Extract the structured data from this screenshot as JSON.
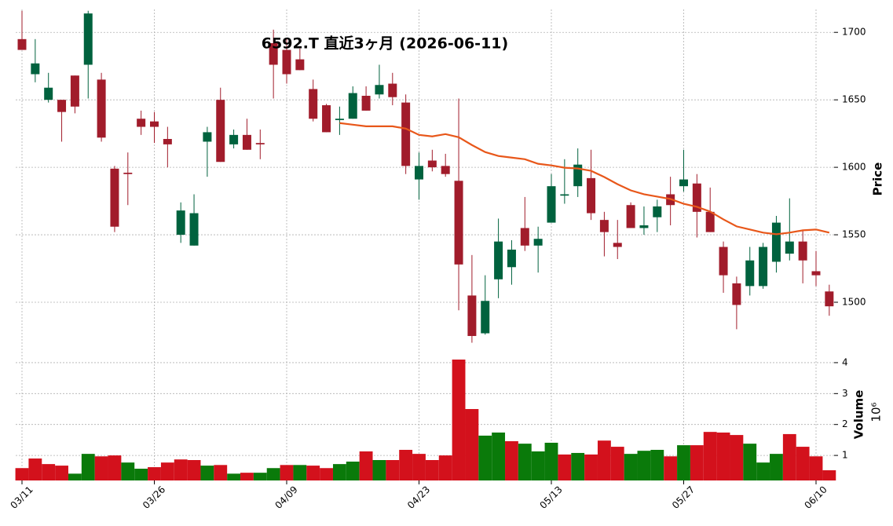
{
  "chart_data": {
    "type": "candlestick",
    "title": "6592.T  直近3ヶ月  (2026-06-11)",
    "categories": [
      "03/11",
      null,
      null,
      null,
      null,
      null,
      null,
      null,
      null,
      null,
      "03/26",
      null,
      null,
      null,
      null,
      null,
      null,
      null,
      null,
      null,
      "04/09",
      null,
      null,
      null,
      null,
      null,
      null,
      null,
      null,
      null,
      "04/23",
      null,
      null,
      null,
      null,
      null,
      null,
      null,
      null,
      null,
      "05/13",
      null,
      null,
      null,
      null,
      null,
      null,
      null,
      null,
      null,
      "05/27",
      null,
      null,
      null,
      null,
      null,
      null,
      null,
      null,
      null,
      "06/10",
      null
    ],
    "open": [
      1695,
      1669,
      1650,
      1650,
      1668,
      1676,
      1665,
      1599,
      1596,
      1636,
      1634,
      1621,
      1550,
      1542,
      1619,
      1650,
      1617,
      1624,
      1618,
      1692,
      1687,
      1680,
      1658,
      1646,
      1635,
      1636,
      1653,
      1654,
      1662,
      1648,
      1591,
      1605,
      1601,
      1590,
      1505,
      1477,
      1517,
      1526,
      1555,
      1542,
      1559,
      1579,
      1586,
      1592,
      1561,
      1544,
      1572,
      1555,
      1563,
      1580,
      1586,
      1588,
      1567,
      1541,
      1514,
      1512,
      1512,
      1530,
      1536,
      1545,
      1523,
      1508
    ],
    "high": [
      1716,
      1695,
      1670,
      1650,
      1668,
      1716,
      1670,
      1601,
      1611,
      1642,
      1641,
      1630,
      1574,
      1580,
      1630,
      1659,
      1628,
      1636,
      1628,
      1702,
      1696,
      1688,
      1665,
      1647,
      1645,
      1660,
      1660,
      1676,
      1670,
      1654,
      1611,
      1613,
      1610,
      1651,
      1535,
      1520,
      1562,
      1546,
      1578,
      1556,
      1595,
      1606,
      1614,
      1613,
      1567,
      1561,
      1574,
      1571,
      1576,
      1593,
      1613,
      1595,
      1585,
      1545,
      1519,
      1541,
      1544,
      1564,
      1577,
      1553,
      1538,
      1513
    ],
    "low": [
      1687,
      1663,
      1648,
      1619,
      1640,
      1651,
      1619,
      1552,
      1572,
      1624,
      1618,
      1600,
      1544,
      1542,
      1593,
      1604,
      1614,
      1613,
      1606,
      1651,
      1662,
      1672,
      1634,
      1626,
      1624,
      1636,
      1642,
      1651,
      1646,
      1595,
      1576,
      1597,
      1593,
      1494,
      1470,
      1476,
      1503,
      1513,
      1538,
      1522,
      1559,
      1573,
      1578,
      1561,
      1534,
      1532,
      1555,
      1550,
      1552,
      1557,
      1582,
      1548,
      1552,
      1507,
      1480,
      1505,
      1510,
      1522,
      1531,
      1514,
      1512,
      1490
    ],
    "close": [
      1687,
      1677,
      1659,
      1641,
      1645,
      1714,
      1622,
      1556,
      1595,
      1630,
      1630,
      1617,
      1568,
      1566,
      1626,
      1604,
      1624,
      1613,
      1617,
      1676,
      1669,
      1672,
      1636,
      1626,
      1636,
      1655,
      1642,
      1661,
      1652,
      1601,
      1601,
      1600,
      1595,
      1528,
      1475,
      1501,
      1545,
      1539,
      1542,
      1547,
      1586,
      1580,
      1602,
      1566,
      1552,
      1541,
      1555,
      1557,
      1571,
      1572,
      1591,
      1567,
      1552,
      1520,
      1498,
      1531,
      1541,
      1559,
      1545,
      1531,
      1520,
      1497
    ],
    "up_color": "#00623e",
    "down_color": "#a11c2b",
    "ma": {
      "color": "#e8571a",
      "values": [
        null,
        null,
        null,
        null,
        null,
        null,
        null,
        null,
        null,
        null,
        null,
        null,
        null,
        null,
        null,
        null,
        null,
        null,
        null,
        null,
        null,
        null,
        null,
        null,
        1632.8,
        1631.6,
        1630.4,
        1630.4,
        1630.4,
        1628.7,
        1624,
        1622.9,
        1624.6,
        1622.3,
        1616.5,
        1611.3,
        1608.4,
        1607.2,
        1606,
        1602.6,
        1601.4,
        1599.7,
        1599.1,
        1597.4,
        1592.8,
        1587.5,
        1582.9,
        1580,
        1578.3,
        1576.5,
        1573,
        1570.7,
        1567.2,
        1561.4,
        1556.2,
        1553.9,
        1551.6,
        1550.4,
        1551.6,
        1553.3,
        1553.9,
        1551.6
      ]
    },
    "ylim": [
      1468,
      1717
    ],
    "yticks": [
      1500,
      1550,
      1600,
      1650,
      1700
    ],
    "ylabel": "Price",
    "grid": true,
    "volume": {
      "values": [
        0.59,
        0.9,
        0.72,
        0.67,
        0.41,
        1.05,
        0.97,
        1.0,
        0.77,
        0.57,
        0.62,
        0.77,
        0.87,
        0.85,
        0.67,
        0.69,
        0.41,
        0.44,
        0.44,
        0.59,
        0.69,
        0.69,
        0.67,
        0.59,
        0.72,
        0.8,
        1.13,
        0.85,
        0.85,
        1.18,
        1.05,
        0.85,
        1.0,
        4.1,
        2.5,
        1.64,
        1.74,
        1.46,
        1.38,
        1.13,
        1.41,
        1.03,
        1.08,
        1.03,
        1.48,
        1.28,
        1.05,
        1.15,
        1.18,
        0.97,
        1.33,
        1.33,
        1.76,
        1.74,
        1.66,
        1.38,
        0.77,
        1.05,
        1.69,
        1.28,
        0.97,
        0.52
      ],
      "colors": [
        "#d3111c",
        "#d3111c",
        "#d3111c",
        "#d3111c",
        "#0a7a0a",
        "#0a7a0a",
        "#d3111c",
        "#d3111c",
        "#0a7a0a",
        "#0a7a0a",
        "#d3111c",
        "#d3111c",
        "#d3111c",
        "#d3111c",
        "#0a7a0a",
        "#d3111c",
        "#0a7a0a",
        "#d3111c",
        "#0a7a0a",
        "#0a7a0a",
        "#d3111c",
        "#0a7a0a",
        "#d3111c",
        "#d3111c",
        "#0a7a0a",
        "#0a7a0a",
        "#d3111c",
        "#0a7a0a",
        "#d3111c",
        "#d3111c",
        "#d3111c",
        "#d3111c",
        "#d3111c",
        "#d3111c",
        "#d3111c",
        "#0a7a0a",
        "#0a7a0a",
        "#d3111c",
        "#0a7a0a",
        "#0a7a0a",
        "#0a7a0a",
        "#d3111c",
        "#0a7a0a",
        "#d3111c",
        "#d3111c",
        "#d3111c",
        "#0a7a0a",
        "#0a7a0a",
        "#0a7a0a",
        "#d3111c",
        "#0a7a0a",
        "#d3111c",
        "#d3111c",
        "#d3111c",
        "#d3111c",
        "#0a7a0a",
        "#0a7a0a",
        "#0a7a0a",
        "#d3111c",
        "#d3111c",
        "#d3111c",
        "#d3111c"
      ],
      "ylim": [
        0.19,
        4.43
      ],
      "yticks": [
        1,
        2,
        3,
        4
      ],
      "ylabel": "Volume",
      "scale_label": "10⁶"
    }
  }
}
